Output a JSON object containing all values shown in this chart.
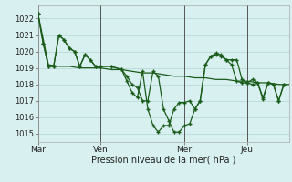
{
  "xlabel": "Pression niveau de la mer( hPa )",
  "background_color": "#d8f0f0",
  "grid_color": "#b8dada",
  "line_color": "#1a5c1a",
  "ylim": [
    1014.5,
    1022.8
  ],
  "yticks": [
    1015,
    1016,
    1017,
    1018,
    1019,
    1020,
    1021,
    1022
  ],
  "day_labels": [
    "Mar",
    "Ven",
    "Mer",
    "Jeu"
  ],
  "day_positions": [
    0,
    36,
    84,
    120
  ],
  "xlim": [
    0,
    144
  ],
  "smooth_x": [
    0,
    6,
    12,
    18,
    24,
    30,
    36,
    42,
    48,
    54,
    60,
    66,
    72,
    78,
    84,
    90,
    96,
    102,
    108,
    114,
    120,
    126,
    132,
    138,
    144
  ],
  "smooth_y": [
    1022.3,
    1019.2,
    1019.1,
    1019.1,
    1019.0,
    1019.0,
    1019.0,
    1018.9,
    1018.9,
    1018.8,
    1018.7,
    1018.7,
    1018.6,
    1018.5,
    1018.5,
    1018.4,
    1018.4,
    1018.3,
    1018.3,
    1018.2,
    1018.2,
    1018.1,
    1018.1,
    1018.0,
    1018.0
  ],
  "jagged1_x": [
    0,
    3,
    6,
    9,
    12,
    15,
    18,
    21,
    24,
    27,
    30,
    33,
    36,
    42,
    48,
    51,
    54,
    57,
    60,
    63,
    66,
    69,
    72,
    75,
    78,
    81,
    84,
    87,
    90,
    93,
    96,
    99,
    102,
    105,
    108,
    111,
    114,
    117,
    120,
    123,
    126,
    129,
    132,
    135,
    138,
    141
  ],
  "jagged1_y": [
    1022.3,
    1020.5,
    1019.1,
    1019.1,
    1021.0,
    1020.7,
    1020.2,
    1020.0,
    1019.1,
    1019.8,
    1019.5,
    1019.1,
    1019.1,
    1019.1,
    1018.9,
    1018.2,
    1017.5,
    1017.2,
    1018.8,
    1016.5,
    1015.5,
    1015.1,
    1015.5,
    1015.5,
    1016.5,
    1016.9,
    1016.9,
    1017.0,
    1016.5,
    1017.0,
    1019.2,
    1019.7,
    1019.8,
    1019.7,
    1019.5,
    1019.2,
    1018.2,
    1018.1,
    1018.1,
    1018.0,
    1018.1,
    1017.2,
    1018.1,
    1018.0,
    1017.0,
    1018.0
  ],
  "jagged2_x": [
    0,
    3,
    6,
    9,
    12,
    15,
    18,
    21,
    24,
    27,
    30,
    33,
    36,
    42,
    48,
    51,
    54,
    57,
    60,
    63,
    66,
    69,
    72,
    75,
    78,
    81,
    84,
    87,
    90,
    93,
    96,
    99,
    102,
    105,
    108,
    111,
    114,
    117,
    120,
    123,
    126,
    129,
    132,
    135,
    138,
    141
  ],
  "jagged2_y": [
    1022.3,
    1020.5,
    1019.1,
    1019.1,
    1021.0,
    1020.7,
    1020.2,
    1020.0,
    1019.1,
    1019.8,
    1019.5,
    1019.1,
    1019.1,
    1019.1,
    1018.9,
    1018.5,
    1018.0,
    1017.8,
    1017.0,
    1017.0,
    1018.8,
    1018.5,
    1016.5,
    1015.8,
    1015.1,
    1015.1,
    1015.5,
    1015.6,
    1016.5,
    1017.0,
    1019.2,
    1019.7,
    1019.9,
    1019.8,
    1019.5,
    1019.5,
    1019.5,
    1018.3,
    1018.1,
    1018.3,
    1018.1,
    1017.1,
    1018.1,
    1018.0,
    1017.0,
    1018.0
  ]
}
